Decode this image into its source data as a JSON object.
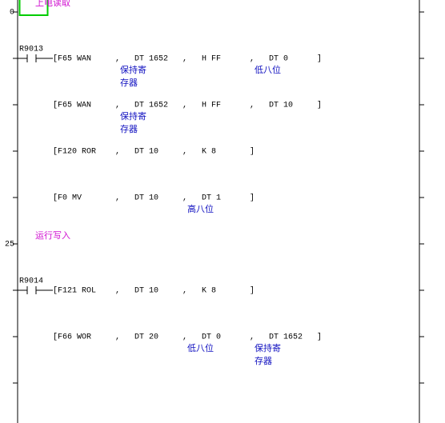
{
  "rungs": [
    {
      "step": "0",
      "comment": "上电读取",
      "contact": "R9013",
      "instructions": [
        {
          "op": "[F65 WAN",
          "operands": [
            "DT 1652",
            "H FF",
            "DT 0"
          ],
          "notes": [
            [
              "保持寄",
              "存器"
            ],
            [],
            [
              "低八位"
            ]
          ]
        },
        {
          "op": "[F65 WAN",
          "operands": [
            "DT 1652",
            "H FF",
            "DT 10"
          ],
          "notes": [
            [
              "保持寄",
              "存器"
            ],
            [],
            []
          ]
        },
        {
          "op": "[F120 ROR",
          "operands": [
            "DT 10",
            "K 8"
          ],
          "notes": [
            [],
            []
          ]
        },
        {
          "op": "[F0 MV",
          "operands": [
            "DT 10",
            "DT 1"
          ],
          "notes": [
            [],
            [
              "高八位"
            ]
          ]
        }
      ]
    },
    {
      "step": "25",
      "comment": "运行写入",
      "contact": "R9014",
      "instructions": [
        {
          "op": "[F121 ROL",
          "operands": [
            "DT 10",
            "K 8"
          ],
          "notes": [
            [],
            []
          ]
        },
        {
          "op": "[F66 WOR",
          "operands": [
            "DT 20",
            "DT 0",
            "DT 1652"
          ],
          "notes": [
            [],
            [
              "低八位"
            ],
            [
              "保持寄",
              "存器"
            ]
          ]
        }
      ]
    }
  ],
  "separator": ",",
  "close": "]"
}
